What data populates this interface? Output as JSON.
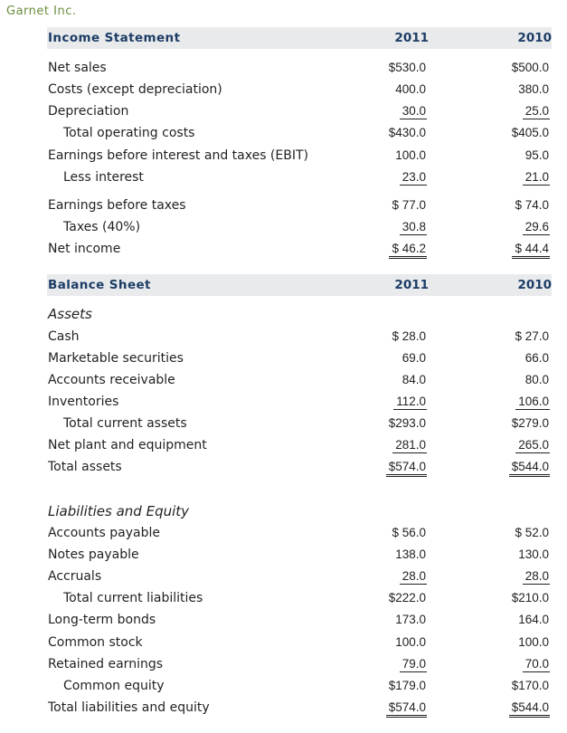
{
  "company": "Garnet Inc.",
  "income_statement": {
    "title": "Income Statement",
    "year1": "2011",
    "year2": "2010",
    "rows": [
      {
        "label": "Net sales",
        "v2011": "$530.0",
        "v2010": "$500.0"
      },
      {
        "label": "Costs (except depreciation)",
        "v2011": "400.0",
        "v2010": "380.0"
      },
      {
        "label": "Depreciation",
        "v2011": "30.0",
        "v2010": "25.0"
      },
      {
        "label": "Total operating costs",
        "v2011": "$430.0",
        "v2010": "$405.0"
      },
      {
        "label": "Earnings before interest and taxes (EBIT)",
        "v2011": "100.0",
        "v2010": "95.0"
      },
      {
        "label": "Less interest",
        "v2011": "23.0",
        "v2010": "21.0"
      },
      {
        "label": "Earnings before taxes",
        "v2011": "$ 77.0",
        "v2010": "$ 74.0"
      },
      {
        "label": "Taxes (40%)",
        "v2011": "30.8",
        "v2010": "29.6"
      },
      {
        "label": "Net income",
        "v2011": "$ 46.2",
        "v2010": "$ 44.4"
      }
    ]
  },
  "balance_sheet": {
    "title": "Balance Sheet",
    "year1": "2011",
    "year2": "2010",
    "assets_heading": "Assets",
    "assets": [
      {
        "label": "Cash",
        "v2011": "$ 28.0",
        "v2010": "$ 27.0"
      },
      {
        "label": "Marketable securities",
        "v2011": "69.0",
        "v2010": "66.0"
      },
      {
        "label": "Accounts receivable",
        "v2011": "84.0",
        "v2010": "80.0"
      },
      {
        "label": "Inventories",
        "v2011": "112.0",
        "v2010": "106.0"
      },
      {
        "label": "Total current assets",
        "v2011": "$293.0",
        "v2010": "$279.0"
      },
      {
        "label": "Net plant and equipment",
        "v2011": "281.0",
        "v2010": "265.0"
      },
      {
        "label": "Total assets",
        "v2011": "$574.0",
        "v2010": "$544.0"
      }
    ],
    "liabilities_heading": "Liabilities and Equity",
    "liabilities": [
      {
        "label": "Accounts payable",
        "v2011": "$ 56.0",
        "v2010": "$ 52.0"
      },
      {
        "label": "Notes payable",
        "v2011": "138.0",
        "v2010": "130.0"
      },
      {
        "label": "Accruals",
        "v2011": "28.0",
        "v2010": "28.0"
      },
      {
        "label": "Total current liabilities",
        "v2011": "$222.0",
        "v2010": "$210.0"
      },
      {
        "label": "Long-term bonds",
        "v2011": "173.0",
        "v2010": "164.0"
      },
      {
        "label": "Common stock",
        "v2011": "100.0",
        "v2010": "100.0"
      },
      {
        "label": "Retained earnings",
        "v2011": "79.0",
        "v2010": "70.0"
      },
      {
        "label": "Common equity",
        "v2011": "$179.0",
        "v2010": "$170.0"
      },
      {
        "label": "Total liabilities and equity",
        "v2011": "$574.0",
        "v2010": "$544.0"
      }
    ]
  }
}
